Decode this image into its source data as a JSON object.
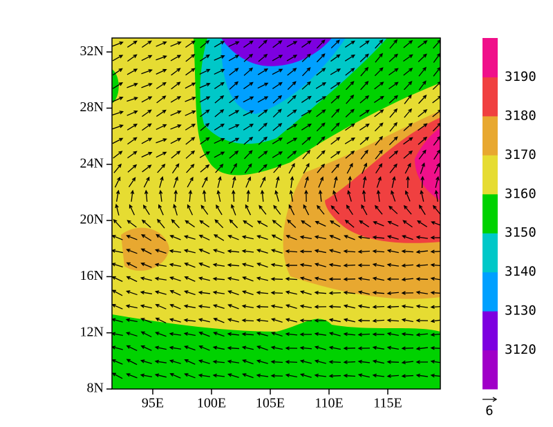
{
  "map": {
    "lat_ticks": [
      "8N",
      "12N",
      "16N",
      "20N",
      "24N",
      "28N",
      "32N"
    ],
    "lon_ticks": [
      "95E",
      "100E",
      "105E",
      "110E",
      "115E"
    ],
    "colorbar": {
      "levels": [
        3120,
        3130,
        3140,
        3150,
        3160,
        3170,
        3180,
        3190
      ],
      "colors": [
        "#a000c8",
        "#7d00e0",
        "#00a0ff",
        "#00c8c8",
        "#00d200",
        "#e6dc32",
        "#e8a830",
        "#f04040",
        "#f0108a"
      ]
    },
    "vector_reference": "6"
  }
}
